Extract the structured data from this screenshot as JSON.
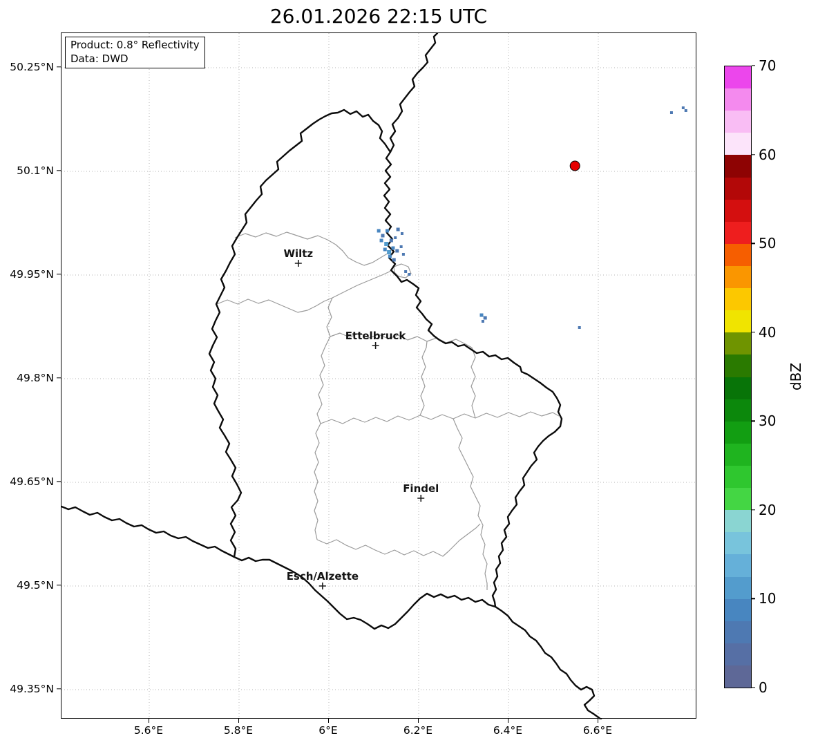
{
  "title": "26.01.2026 22:15 UTC",
  "info_box": {
    "line1": "Product: 0.8° Reflectivity",
    "line2": "Data: DWD"
  },
  "axes": {
    "lat_ticks": [
      {
        "value": 50.25,
        "label": "50.25°N"
      },
      {
        "value": 50.1,
        "label": "50.1°N"
      },
      {
        "value": 49.95,
        "label": "49.95°N"
      },
      {
        "value": 49.8,
        "label": "49.8°N"
      },
      {
        "value": 49.65,
        "label": "49.65°N"
      },
      {
        "value": 49.5,
        "label": "49.5°N"
      },
      {
        "value": 49.35,
        "label": "49.35°N"
      }
    ],
    "lon_ticks": [
      {
        "value": 5.6,
        "label": "5.6°E"
      },
      {
        "value": 5.8,
        "label": "5.8°E"
      },
      {
        "value": 6.0,
        "label": "6°E"
      },
      {
        "value": 6.2,
        "label": "6.2°E"
      },
      {
        "value": 6.4,
        "label": "6.4°E"
      },
      {
        "value": 6.6,
        "label": "6.6°E"
      }
    ]
  },
  "map_bounds": {
    "lon_min": 5.4046,
    "lon_max": 6.82,
    "lat_min": 49.307,
    "lat_max": 50.3
  },
  "cities": [
    {
      "name": "Wiltz",
      "lon": 5.932,
      "lat": 49.967
    },
    {
      "name": "Ettelbruck",
      "lon": 6.104,
      "lat": 49.848
    },
    {
      "name": "Findel",
      "lon": 6.205,
      "lat": 49.627
    },
    {
      "name": "Esch/Alzette",
      "lon": 5.986,
      "lat": 49.5
    }
  ],
  "radar_site": {
    "lon": 6.548,
    "lat": 50.108,
    "color": "#e60000"
  },
  "echoes": [
    {
      "lon": 6.111,
      "lat": 50.014,
      "dbz": 8,
      "size": 5
    },
    {
      "lon": 6.12,
      "lat": 50.007,
      "dbz": 6,
      "size": 5
    },
    {
      "lon": 6.13,
      "lat": 50.014,
      "dbz": 8,
      "size": 5
    },
    {
      "lon": 6.154,
      "lat": 50.016,
      "dbz": 7,
      "size": 5
    },
    {
      "lon": 6.163,
      "lat": 50.01,
      "dbz": 6,
      "size": 4
    },
    {
      "lon": 6.117,
      "lat": 50.0,
      "dbz": 8,
      "size": 5
    },
    {
      "lon": 6.128,
      "lat": 49.995,
      "dbz": 10,
      "size": 6
    },
    {
      "lon": 6.139,
      "lat": 50.0,
      "dbz": 7,
      "size": 5
    },
    {
      "lon": 6.148,
      "lat": 50.004,
      "dbz": 6,
      "size": 4
    },
    {
      "lon": 6.125,
      "lat": 49.987,
      "dbz": 8,
      "size": 5
    },
    {
      "lon": 6.134,
      "lat": 49.983,
      "dbz": 10,
      "size": 6
    },
    {
      "lon": 6.143,
      "lat": 49.989,
      "dbz": 8,
      "size": 5
    },
    {
      "lon": 6.152,
      "lat": 49.985,
      "dbz": 7,
      "size": 5
    },
    {
      "lon": 6.161,
      "lat": 49.991,
      "dbz": 6,
      "size": 4
    },
    {
      "lon": 6.136,
      "lat": 49.977,
      "dbz": 9,
      "size": 5
    },
    {
      "lon": 6.145,
      "lat": 49.972,
      "dbz": 7,
      "size": 5
    },
    {
      "lon": 6.166,
      "lat": 49.98,
      "dbz": 6,
      "size": 4
    },
    {
      "lon": 6.171,
      "lat": 49.955,
      "dbz": 7,
      "size": 4
    },
    {
      "lon": 6.179,
      "lat": 49.951,
      "dbz": 6,
      "size": 4
    },
    {
      "lon": 6.34,
      "lat": 49.892,
      "dbz": 8,
      "size": 5
    },
    {
      "lon": 6.348,
      "lat": 49.888,
      "dbz": 7,
      "size": 5
    },
    {
      "lon": 6.343,
      "lat": 49.883,
      "dbz": 6,
      "size": 4
    },
    {
      "lon": 6.558,
      "lat": 49.874,
      "dbz": 5,
      "size": 4
    },
    {
      "lon": 6.763,
      "lat": 50.185,
      "dbz": 6,
      "size": 4
    },
    {
      "lon": 6.789,
      "lat": 50.192,
      "dbz": 7,
      "size": 4
    },
    {
      "lon": 6.795,
      "lat": 50.188,
      "dbz": 6,
      "size": 4
    }
  ],
  "colorbar": {
    "label": "dBZ",
    "min": 0,
    "max": 70,
    "band_step": 2.5,
    "ticks": [
      {
        "value": 0,
        "label": "0"
      },
      {
        "value": 10,
        "label": "10"
      },
      {
        "value": 20,
        "label": "20"
      },
      {
        "value": 30,
        "label": "30"
      },
      {
        "value": 40,
        "label": "40"
      },
      {
        "value": 50,
        "label": "50"
      },
      {
        "value": 60,
        "label": "60"
      },
      {
        "value": 70,
        "label": "70"
      }
    ],
    "colors": [
      "#5e6897",
      "#566fa5",
      "#4e79b2",
      "#4886c0",
      "#539ccd",
      "#65b0d9",
      "#78c4dc",
      "#8ad5d2",
      "#44d644",
      "#2fc72f",
      "#1fb41f",
      "#129e12",
      "#0c880c",
      "#087408",
      "#2a7a00",
      "#6f9400",
      "#f0e400",
      "#fcc800",
      "#fa9600",
      "#f65e00",
      "#ee1e1e",
      "#d40f0f",
      "#b30808",
      "#8e0303",
      "#fce4fa",
      "#f9bdf4",
      "#f48aee",
      "#ec46ec"
    ]
  }
}
